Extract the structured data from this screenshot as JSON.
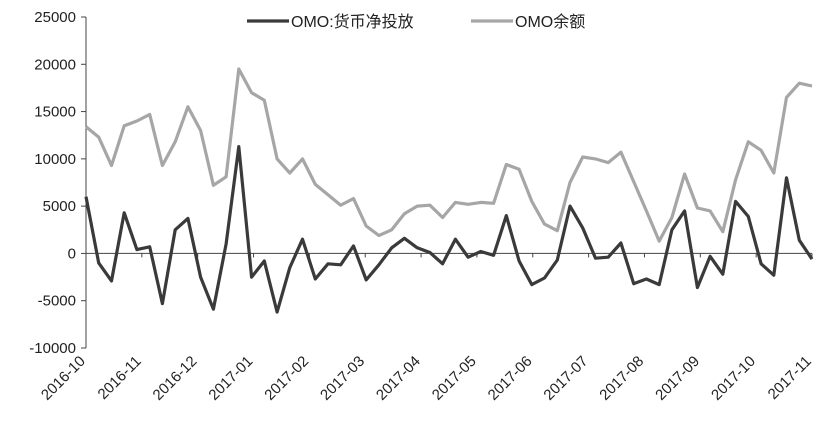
{
  "chart_data": {
    "type": "line",
    "ylim": [
      -10000,
      25000
    ],
    "yticks": [
      "25000",
      "20000",
      "15000",
      "10000",
      "5000",
      "0",
      "-5000",
      "-10000"
    ],
    "ytick_values": [
      25000,
      20000,
      15000,
      10000,
      5000,
      0,
      -5000,
      -10000
    ],
    "xticks": [
      "2016-10",
      "2016-11",
      "2016-12",
      "2017-01",
      "2017-02",
      "2017-03",
      "2017-04",
      "2017-05",
      "2017-06",
      "2017-07",
      "2017-08",
      "2017-09",
      "2017-10",
      "2017-11"
    ],
    "grid": false,
    "legend": "top",
    "series": [
      {
        "name": "OMO:货币净投放",
        "color": "#3a3a3a",
        "values": [
          6000,
          -1000,
          -2900,
          4300,
          400,
          700,
          -5300,
          2500,
          3700,
          -2500,
          -5900,
          1000,
          11300,
          -2500,
          -800,
          -6200,
          -1500,
          1500,
          -2700,
          -1100,
          -1200,
          800,
          -2800,
          -1200,
          600,
          1600,
          600,
          100,
          -1100,
          1500,
          -400,
          200,
          -200,
          4000,
          -800,
          -3300,
          -2600,
          -700,
          5000,
          2700,
          -500,
          -400,
          1100,
          -3200,
          -2700,
          -3300,
          2500,
          4500,
          -3600,
          -300,
          -2200,
          5500,
          3900,
          -1100,
          -2300,
          8000,
          1400,
          -600
        ]
      },
      {
        "name": "OMO余额",
        "color": "#a6a6a6",
        "values": [
          13400,
          12300,
          9300,
          13500,
          14000,
          14700,
          9300,
          11800,
          15500,
          13000,
          7200,
          8100,
          19500,
          17000,
          16200,
          10000,
          8500,
          10000,
          7300,
          6200,
          5100,
          5800,
          2900,
          1900,
          2500,
          4200,
          5000,
          5100,
          3800,
          5400,
          5200,
          5400,
          5300,
          9400,
          8900,
          5500,
          3100,
          2400,
          7500,
          10200,
          10000,
          9600,
          10700,
          7600,
          4500,
          1300,
          3800,
          8400,
          4800,
          4500,
          2300,
          7800,
          11800,
          10900,
          8500,
          16500,
          18000,
          17700
        ]
      }
    ]
  }
}
